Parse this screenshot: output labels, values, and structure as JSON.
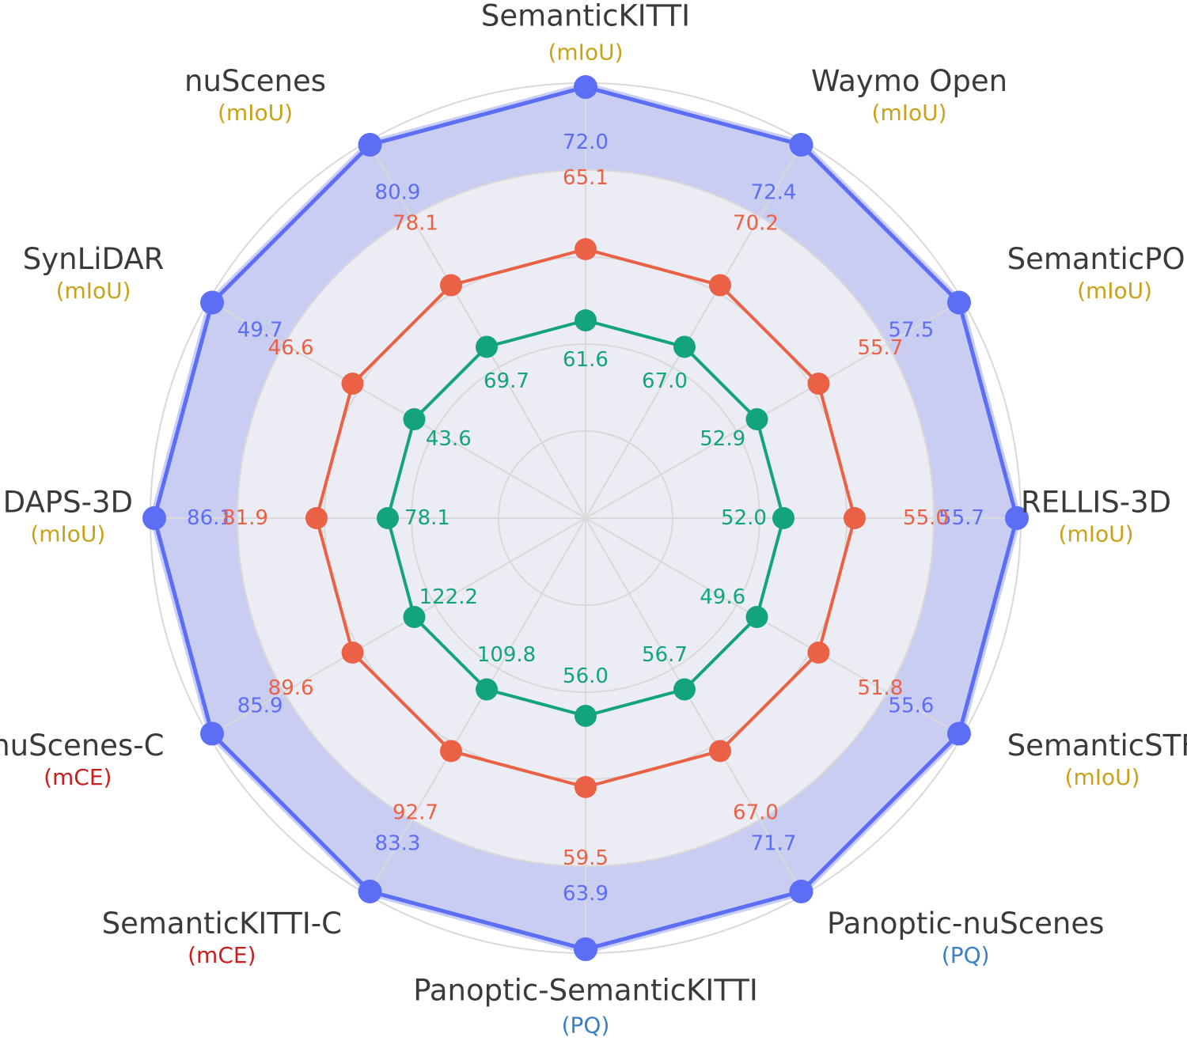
{
  "chart_data": {
    "type": "radar",
    "title": "",
    "grid": true,
    "axes": [
      {
        "name": "SemanticKITTI",
        "metric": "(mIoU)"
      },
      {
        "name": "Waymo Open",
        "metric": "(mIoU)"
      },
      {
        "name": "SemanticPOSS",
        "metric": "(mIoU)"
      },
      {
        "name": "RELLIS-3D",
        "metric": "(mIoU)"
      },
      {
        "name": "SemanticSTF",
        "metric": "(mIoU)"
      },
      {
        "name": "Panoptic-nuScenes",
        "metric": "(PQ)"
      },
      {
        "name": "Panoptic-SemanticKITTI",
        "metric": "(PQ)"
      },
      {
        "name": "SemanticKITTI-C",
        "metric": "(mCE)"
      },
      {
        "name": "nuScenes-C",
        "metric": "(mCE)"
      },
      {
        "name": "DAPS-3D",
        "metric": "(mIoU)"
      },
      {
        "name": "SynLiDAR",
        "metric": "(mIoU)"
      },
      {
        "name": "nuScenes",
        "metric": "(mIoU)"
      }
    ],
    "series": [
      {
        "color": "#5b6ef5",
        "labels": [
          "72.0",
          "72.4",
          "57.5",
          "55.7",
          "55.6",
          "71.7",
          "63.9",
          "83.3",
          "85.9",
          "86.1",
          "49.7",
          "80.9"
        ]
      },
      {
        "color": "#ea6145",
        "labels": [
          "65.1",
          "70.2",
          "55.7",
          "55.0",
          "51.8",
          "67.0",
          "59.5",
          "92.7",
          "89.6",
          "81.9",
          "46.6",
          "78.1"
        ]
      },
      {
        "color": "#14a37f",
        "labels": [
          "61.6",
          "67.0",
          "52.9",
          "52.0",
          "49.6",
          "56.7",
          "56.0",
          "109.8",
          "122.2",
          "78.1",
          "43.6",
          "69.7"
        ]
      }
    ]
  },
  "colors": {
    "metric_miou": "#c9a21b",
    "metric_mce": "#c81e1e",
    "metric_pq": "#3b7fc4",
    "grid": "#d9d9d9",
    "inner_fill": "#ececf4",
    "outer_fill": "#c9cdf2"
  }
}
